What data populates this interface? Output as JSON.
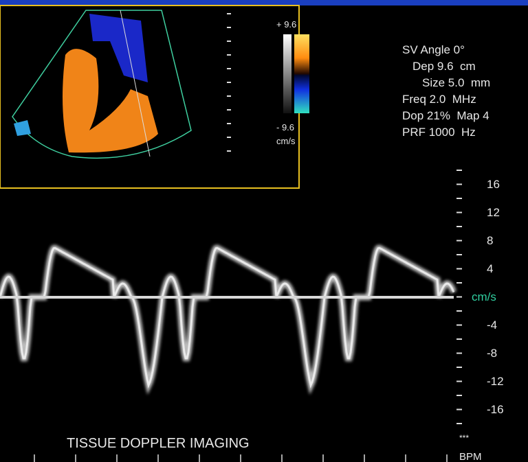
{
  "color_scale": {
    "max": "+ 9.6",
    "min": "- 9.6",
    "unit": "cm/s"
  },
  "settings": [
    "SV Angle 0°",
    "Dep 9.6  cm",
    "Size 5.0  mm",
    "Freq 2.0  MHz",
    "Dop 21%  Map 4",
    "PRF 1000  Hz"
  ],
  "velocity_scale": [
    "16",
    "12",
    "8",
    "4",
    "cm/s",
    "-4",
    "-8",
    "-12",
    "-16"
  ],
  "caption": "TISSUE DOPPLER IMAGING",
  "footer": {
    "marker": "***",
    "unit": "BPM"
  }
}
